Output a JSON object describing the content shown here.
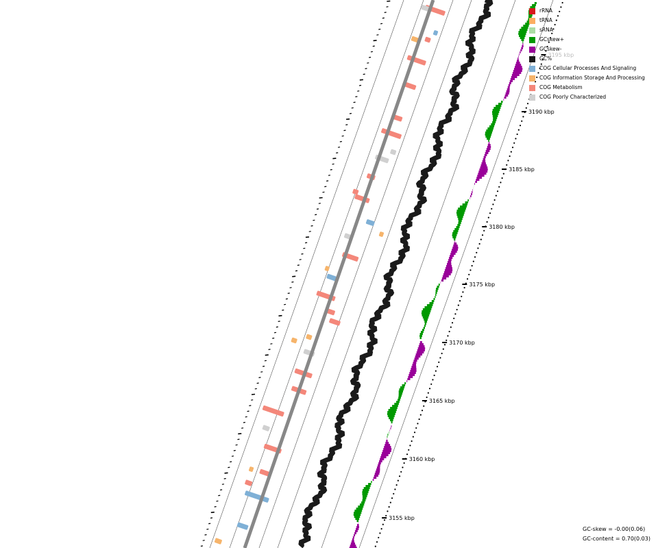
{
  "colors": {
    "rrna": "#d7191c",
    "trna": "#fdae61",
    "srna": "#abdda4",
    "gcskew_plus": "#009900",
    "gcskew_minus": "#990099",
    "gc_percent": "#1a1a1a",
    "cog_cellular": "#7fb0d6",
    "cog_information": "#f6b46b",
    "cog_metabolism": "#f4877a",
    "cog_poorly": "#d0d0d0",
    "backbone": "#888888",
    "track_line": "#555555"
  },
  "legend": [
    {
      "label": "rRNA",
      "color": "#d7191c",
      "icon": "square-swatch"
    },
    {
      "label": "tRNA",
      "color": "#fdae61",
      "icon": "square-swatch"
    },
    {
      "label": "sRNA",
      "color": "#abdda4",
      "icon": "square-swatch"
    },
    {
      "label": "GCskew+",
      "color": "#009900",
      "icon": "square-swatch"
    },
    {
      "label": "GCskew-",
      "color": "#990099",
      "icon": "square-swatch"
    },
    {
      "label": "GC%",
      "color": "#1a1a1a",
      "icon": "square-swatch"
    },
    {
      "label": "COG Cellular Processes And Signaling",
      "color": "#7fb0d6",
      "icon": "square-swatch"
    },
    {
      "label": "COG Information Storage And Processing",
      "color": "#f6b46b",
      "icon": "square-swatch"
    },
    {
      "label": "COG Metabolism",
      "color": "#f4877a",
      "icon": "square-swatch"
    },
    {
      "label": "COG Poorly Characterized",
      "color": "#d0d0d0",
      "icon": "square-swatch"
    }
  ],
  "axis": {
    "unit": "kbp",
    "ticks": [
      {
        "label": "3155 kbp",
        "faded": false
      },
      {
        "label": "3160 kbp",
        "faded": false
      },
      {
        "label": "3165 kbp",
        "faded": false
      },
      {
        "label": "3170 kbp",
        "faded": false
      },
      {
        "label": "3175 kbp",
        "faded": false
      },
      {
        "label": "3180 kbp",
        "faded": false
      },
      {
        "label": "3185 kbp",
        "faded": false
      },
      {
        "label": "3190 kbp",
        "faded": false
      },
      {
        "label": "3195 kbp",
        "faded": true
      }
    ]
  },
  "stats": {
    "gc_skew": "GC-skew = -0.00(0.06)",
    "gc_content": "GC-content = 0.70(0.03)"
  }
}
